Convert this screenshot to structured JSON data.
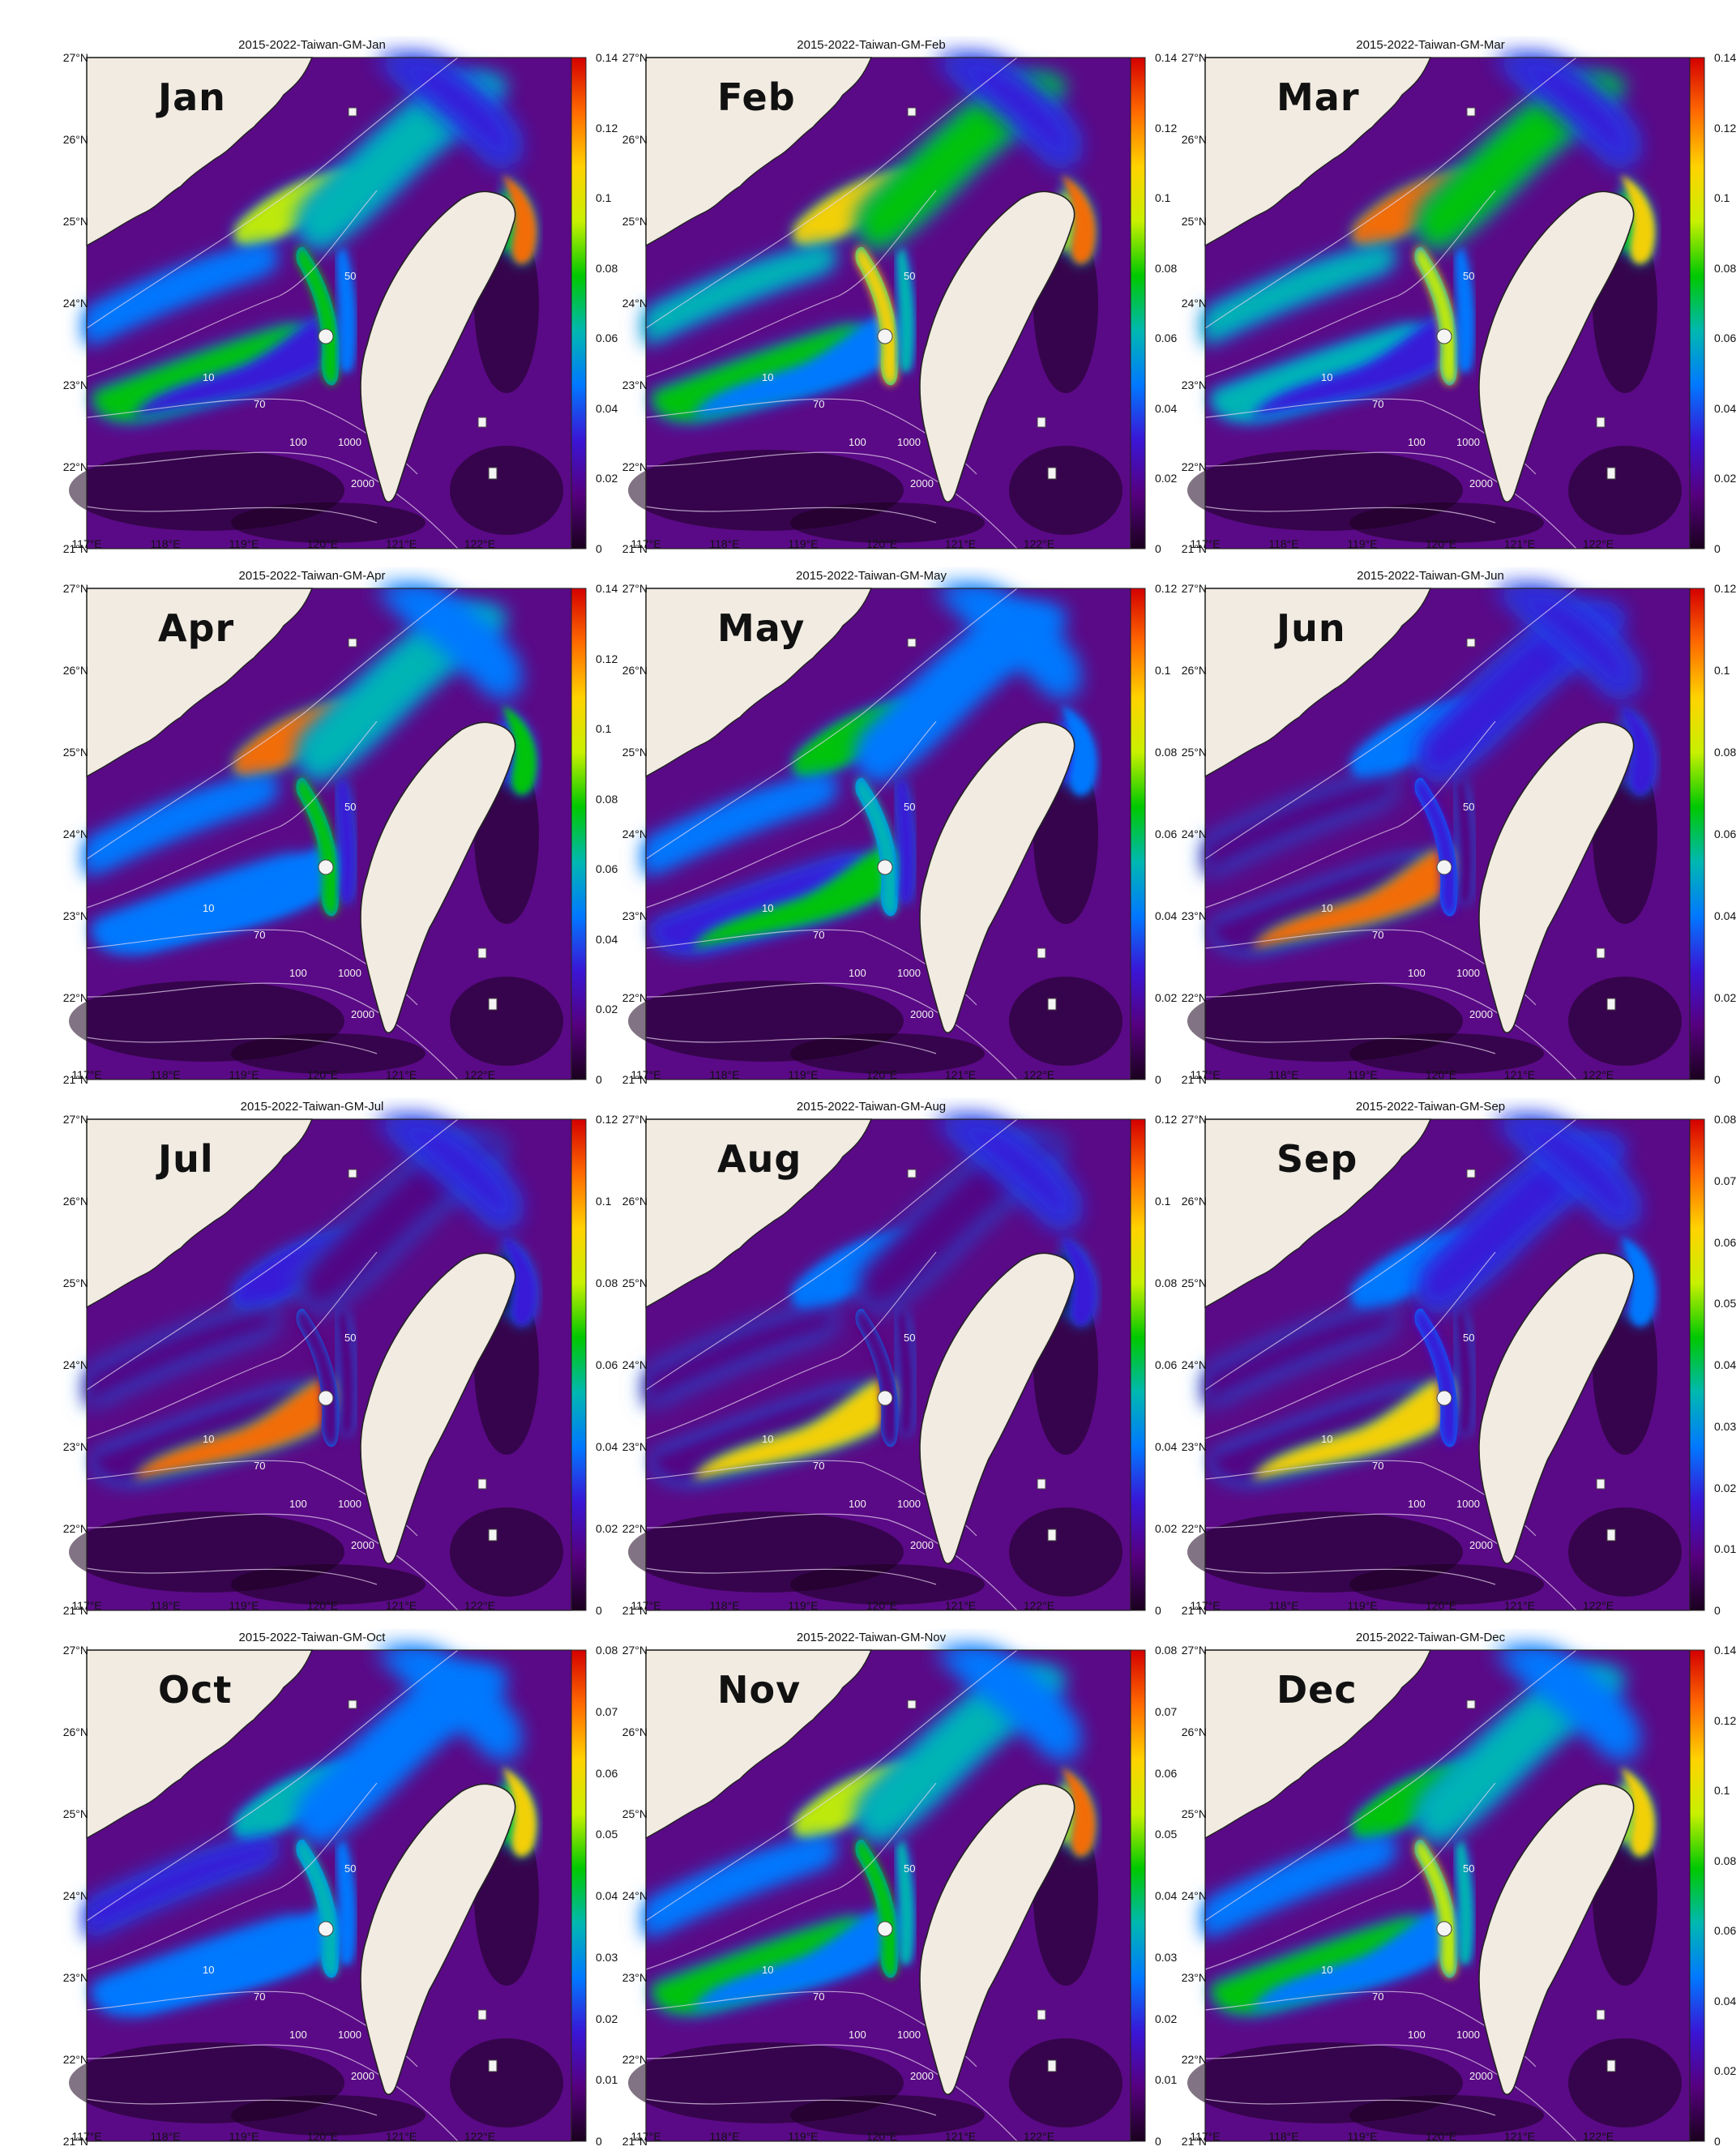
{
  "panels": [
    {
      "id": "jan",
      "label": "Jan",
      "title": "2015-2022-Taiwan-GM-Jan",
      "cbar": [
        "0.14",
        "0.12",
        "0.1",
        "0.08",
        "0.06",
        "0.04",
        "0.02",
        "0"
      ]
    },
    {
      "id": "feb",
      "label": "Feb",
      "title": "2015-2022-Taiwan-GM-Feb",
      "cbar": [
        "0.14",
        "0.12",
        "0.1",
        "0.08",
        "0.06",
        "0.04",
        "0.02",
        "0"
      ]
    },
    {
      "id": "mar",
      "label": "Mar",
      "title": "2015-2022-Taiwan-GM-Mar",
      "cbar": [
        "0.14",
        "0.12",
        "0.1",
        "0.08",
        "0.06",
        "0.04",
        "0.02",
        "0"
      ]
    },
    {
      "id": "apr",
      "label": "Apr",
      "title": "2015-2022-Taiwan-GM-Apr",
      "cbar": [
        "0.14",
        "0.12",
        "0.1",
        "0.08",
        "0.06",
        "0.04",
        "0.02",
        "0"
      ]
    },
    {
      "id": "may",
      "label": "May",
      "title": "2015-2022-Taiwan-GM-May",
      "cbar": [
        "0.12",
        "0.1",
        "0.08",
        "0.06",
        "0.04",
        "0.02",
        "0"
      ]
    },
    {
      "id": "jun",
      "label": "Jun",
      "title": "2015-2022-Taiwan-GM-Jun",
      "cbar": [
        "0.12",
        "0.1",
        "0.08",
        "0.06",
        "0.04",
        "0.02",
        "0"
      ]
    },
    {
      "id": "jul",
      "label": "Jul",
      "title": "2015-2022-Taiwan-GM-Jul",
      "cbar": [
        "0.12",
        "0.1",
        "0.08",
        "0.06",
        "0.04",
        "0.02",
        "0"
      ]
    },
    {
      "id": "aug",
      "label": "Aug",
      "title": "2015-2022-Taiwan-GM-Aug",
      "cbar": [
        "0.12",
        "0.1",
        "0.08",
        "0.06",
        "0.04",
        "0.02",
        "0"
      ]
    },
    {
      "id": "sep",
      "label": "Sep",
      "title": "2015-2022-Taiwan-GM-Sep",
      "cbar": [
        "0.08",
        "0.07",
        "0.06",
        "0.05",
        "0.04",
        "0.03",
        "0.02",
        "0.01",
        "0"
      ]
    },
    {
      "id": "oct",
      "label": "Oct",
      "title": "2015-2022-Taiwan-GM-Oct",
      "cbar": [
        "0.08",
        "0.07",
        "0.06",
        "0.05",
        "0.04",
        "0.03",
        "0.02",
        "0.01",
        "0"
      ]
    },
    {
      "id": "nov",
      "label": "Nov",
      "title": "2015-2022-Taiwan-GM-Nov",
      "cbar": [
        "0.08",
        "0.07",
        "0.06",
        "0.05",
        "0.04",
        "0.03",
        "0.02",
        "0.01",
        "0"
      ]
    },
    {
      "id": "dec",
      "label": "Dec",
      "title": "2015-2022-Taiwan-GM-Dec",
      "cbar": [
        "0.14",
        "0.12",
        "0.1",
        "0.08",
        "0.06",
        "0.04",
        "0.02",
        "0"
      ]
    }
  ],
  "lat_ticks": [
    "27°N",
    "26°N",
    "25°N",
    "24°N",
    "23°N",
    "22°N",
    "21°N"
  ],
  "lon_ticks": [
    "117°E",
    "118°E",
    "119°E",
    "120°E",
    "121°E",
    "122°E"
  ],
  "bathymetry_labels": [
    "10",
    "50",
    "70",
    "100",
    "1000",
    "2000"
  ],
  "colors": {
    "land": "#f1ebe2",
    "ocean_deep": "#5a0a86",
    "colormap": [
      "#1a001e",
      "#56007f",
      "#3a16d6",
      "#0079ff",
      "#00b8b0",
      "#00c800",
      "#c8f000",
      "#ffd200",
      "#ff6a00",
      "#d40000"
    ]
  },
  "intensity": {
    "jan": [
      0.55,
      0.65,
      0.35,
      0.45,
      0.25,
      0.55,
      0.6,
      0.35,
      0.85,
      0.2
    ],
    "feb": [
      0.55,
      0.75,
      0.45,
      0.55,
      0.3,
      0.65,
      0.75,
      0.45,
      0.9,
      0.25
    ],
    "mar": [
      0.45,
      0.85,
      0.4,
      0.6,
      0.25,
      0.5,
      0.7,
      0.3,
      0.75,
      0.2
    ],
    "apr": [
      0.35,
      0.9,
      0.3,
      0.45,
      0.35,
      0.25,
      0.55,
      0.25,
      0.6,
      0.3
    ],
    "may": [
      0.25,
      0.55,
      0.3,
      0.3,
      0.55,
      0.2,
      0.4,
      0.25,
      0.35,
      0.3
    ],
    "jun": [
      0.15,
      0.35,
      0.15,
      0.2,
      0.85,
      0.1,
      0.2,
      0.15,
      0.2,
      0.25
    ],
    "jul": [
      0.1,
      0.25,
      0.1,
      0.15,
      0.9,
      0.05,
      0.15,
      0.1,
      0.2,
      0.2
    ],
    "aug": [
      0.1,
      0.3,
      0.12,
      0.15,
      0.8,
      0.05,
      0.15,
      0.1,
      0.2,
      0.25
    ],
    "sep": [
      0.15,
      0.35,
      0.15,
      0.2,
      0.75,
      0.1,
      0.2,
      0.15,
      0.3,
      0.25
    ],
    "oct": [
      0.35,
      0.45,
      0.25,
      0.35,
      0.35,
      0.5,
      0.45,
      0.3,
      0.8,
      0.3
    ],
    "nov": [
      0.55,
      0.65,
      0.35,
      0.45,
      0.3,
      0.7,
      0.55,
      0.45,
      0.9,
      0.35
    ],
    "dec": [
      0.5,
      0.6,
      0.35,
      0.45,
      0.3,
      0.65,
      0.65,
      0.4,
      0.8,
      0.3
    ]
  }
}
